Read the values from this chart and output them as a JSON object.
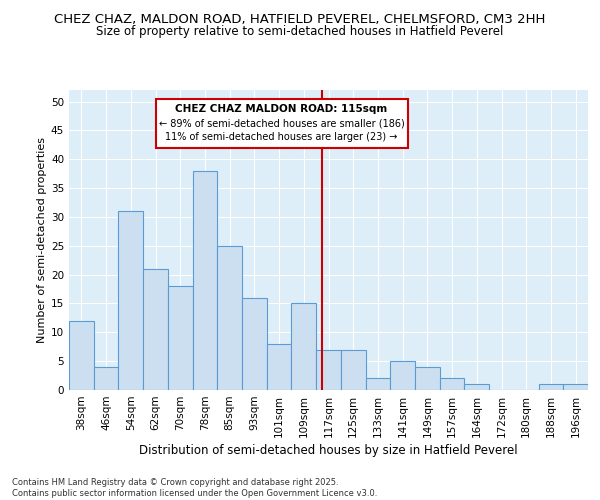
{
  "title1": "CHEZ CHAZ, MALDON ROAD, HATFIELD PEVEREL, CHELMSFORD, CM3 2HH",
  "title2": "Size of property relative to semi-detached houses in Hatfield Peverel",
  "xlabel": "Distribution of semi-detached houses by size in Hatfield Peverel",
  "ylabel": "Number of semi-detached properties",
  "categories": [
    "38sqm",
    "46sqm",
    "54sqm",
    "62sqm",
    "70sqm",
    "78sqm",
    "85sqm",
    "93sqm",
    "101sqm",
    "109sqm",
    "117sqm",
    "125sqm",
    "133sqm",
    "141sqm",
    "149sqm",
    "157sqm",
    "164sqm",
    "172sqm",
    "180sqm",
    "188sqm",
    "196sqm"
  ],
  "values": [
    12,
    4,
    31,
    21,
    18,
    38,
    25,
    16,
    8,
    15,
    7,
    7,
    2,
    5,
    4,
    2,
    1,
    0,
    0,
    1,
    1
  ],
  "bar_color": "#ccdff0",
  "bar_edge_color": "#5b9bd5",
  "bg_color": "#ddeef8",
  "grid_color": "#ffffff",
  "marker_line_color": "#cc0000",
  "annotation_title": "CHEZ CHAZ MALDON ROAD: 115sqm",
  "annotation_line1": "← 89% of semi-detached houses are smaller (186)",
  "annotation_line2": "11% of semi-detached houses are larger (23) →",
  "annotation_box_color": "#ffffff",
  "annotation_box_edge": "#cc0000",
  "ylim": [
    0,
    52
  ],
  "yticks": [
    0,
    5,
    10,
    15,
    20,
    25,
    30,
    35,
    40,
    45,
    50
  ],
  "footer": "Contains HM Land Registry data © Crown copyright and database right 2025.\nContains public sector information licensed under the Open Government Licence v3.0.",
  "title_fontsize": 9.5,
  "subtitle_fontsize": 8.5,
  "axis_label_fontsize": 8,
  "tick_fontsize": 7.5,
  "footer_fontsize": 6,
  "annot_fontsize": 7.5
}
